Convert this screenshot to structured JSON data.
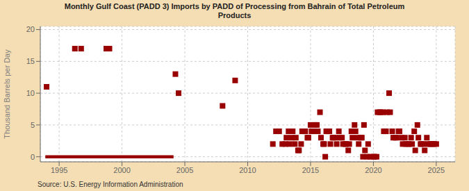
{
  "chart_data": {
    "type": "scatter",
    "title": "Monthly Gulf Coast (PADD 3) Imports by PADD of Processing from Bahrain of Total Petroleum\nProducts",
    "ylabel": "Thousand Barrels per Day",
    "annotations": [
      "Source: U.S. Energy Information Administration"
    ],
    "xlim": [
      1993.5,
      2026.5
    ],
    "ylim": [
      -0.8,
      20.5
    ],
    "xticks": [
      1995,
      2000,
      2005,
      2010,
      2015,
      2020,
      2025
    ],
    "yticks": [
      0,
      5,
      10,
      15,
      20
    ],
    "grid": true,
    "series": [
      {
        "type": "scatter",
        "marker": "square",
        "color": "#990000",
        "x": [
          1994.0,
          1996.25,
          1996.75,
          1998.75,
          1999.0,
          2004.25,
          2004.5,
          2008.0,
          2009.0,
          2012.0,
          2012.25,
          2012.5,
          2012.75,
          2013.0,
          2013.08,
          2013.25,
          2013.33,
          2013.5,
          2013.58,
          2013.75,
          2013.83,
          2014.0,
          2014.08,
          2014.25,
          2014.33,
          2014.5,
          2014.58,
          2014.75,
          2014.83,
          2015.0,
          2015.08,
          2015.25,
          2015.33,
          2015.5,
          2015.58,
          2015.75,
          2015.83,
          2016.0,
          2016.08,
          2016.25,
          2016.33,
          2016.5,
          2016.58,
          2016.75,
          2016.83,
          2017.0,
          2017.08,
          2017.25,
          2017.33,
          2017.5,
          2017.58,
          2017.75,
          2017.83,
          2018.0,
          2018.08,
          2018.25,
          2018.33,
          2018.5,
          2018.58,
          2018.75,
          2018.83,
          2019.0,
          2019.08,
          2019.25,
          2019.33,
          2019.58,
          2020.33,
          2020.5,
          2020.58,
          2020.75,
          2020.83,
          2021.0,
          2021.08,
          2021.25,
          2021.33,
          2021.5,
          2021.58,
          2021.75,
          2021.83,
          2022.0,
          2022.08,
          2022.25,
          2022.33,
          2022.5,
          2022.58,
          2022.75,
          2022.83,
          2023.0,
          2023.08,
          2023.25,
          2023.33,
          2023.5,
          2023.58,
          2023.75,
          2023.83,
          2024.0,
          2024.08,
          2024.25,
          2024.33,
          2024.5,
          2024.58,
          2024.75,
          2024.83,
          2025.0
        ],
        "values": [
          11.0,
          17.0,
          17.0,
          17.0,
          17.0,
          13.0,
          10.0,
          8.0,
          12.0,
          2.0,
          4.0,
          4.0,
          2.0,
          2.0,
          3.0,
          4.0,
          2.0,
          3.0,
          4.0,
          2.0,
          3.0,
          1.0,
          1.0,
          2.0,
          4.0,
          4.0,
          4.0,
          3.0,
          3.0,
          5.0,
          4.0,
          4.0,
          5.0,
          5.0,
          4.0,
          7.0,
          3.0,
          2.0,
          2.0,
          4.0,
          4.0,
          4.0,
          2.0,
          3.0,
          3.0,
          3.0,
          2.0,
          4.0,
          3.0,
          3.0,
          2.0,
          2.0,
          2.0,
          1.0,
          2.0,
          4.0,
          3.0,
          5.0,
          4.0,
          3.0,
          2.0,
          3.0,
          3.0,
          5.0,
          1.0,
          2.0,
          7.0,
          7.0,
          7.0,
          7.0,
          4.0,
          4.0,
          7.0,
          10.0,
          7.0,
          4.0,
          3.0,
          3.0,
          3.0,
          4.0,
          4.0,
          3.0,
          2.0,
          3.0,
          2.0,
          2.0,
          2.0,
          3.0,
          2.0,
          4.0,
          1.0,
          5.0,
          3.0,
          2.0,
          2.0,
          2.0,
          1.0,
          3.0,
          2.0,
          2.0,
          2.0,
          2.0,
          2.0,
          2.0
        ]
      },
      {
        "type": "line",
        "color": "#990000",
        "x": [
          1993.9,
          2004.1
        ],
        "values": [
          0,
          0
        ]
      },
      {
        "type": "scatter",
        "marker": "square",
        "color": "#990000",
        "x": [
          2016.17,
          2019.17,
          2019.5,
          2019.75,
          2020.0,
          2020.08,
          2020.25
        ],
        "values": [
          0.0,
          0.0,
          0.0,
          0.0,
          0.0,
          0.0,
          0.0
        ]
      }
    ]
  }
}
